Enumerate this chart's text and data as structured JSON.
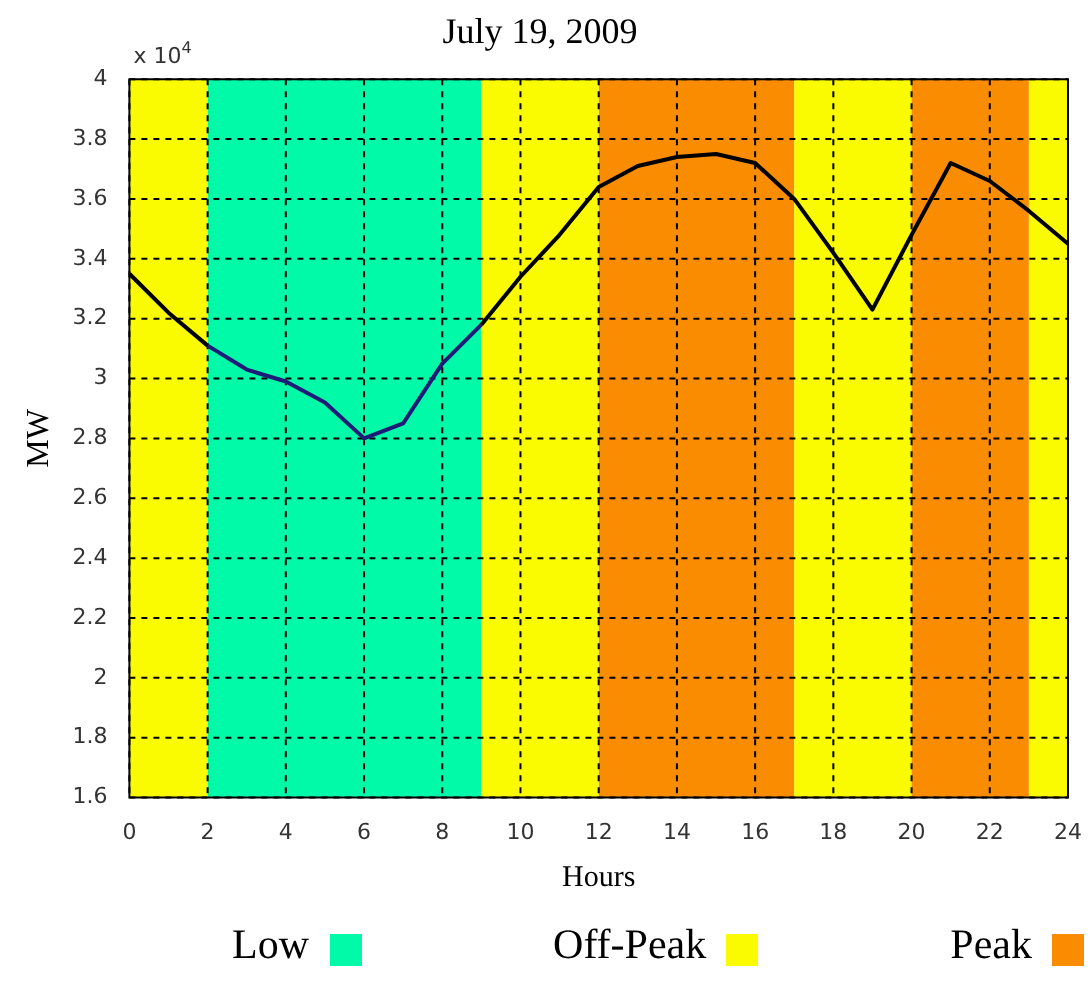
{
  "chart_data": {
    "type": "line",
    "title": "July 19, 2009",
    "xlabel": "Hours",
    "ylabel": "MW",
    "annotations": [
      "x 10$^{4}$"
    ],
    "x": [
      0,
      1,
      2,
      3,
      4,
      5,
      6,
      7,
      8,
      9,
      10,
      11,
      12,
      13,
      14,
      15,
      16,
      17,
      18,
      19,
      20,
      21,
      22,
      23,
      24
    ],
    "series": [
      {
        "color": "#000000",
        "values": [
          3.35,
          3.22,
          3.11,
          null,
          null,
          null,
          null,
          null,
          null,
          3.18,
          3.34,
          3.48,
          3.64,
          3.71,
          3.74,
          3.75,
          3.72,
          3.6,
          3.42,
          3.23,
          3.48,
          3.72,
          3.66,
          3.56,
          3.45
        ]
      },
      {
        "color": "#1c1c78",
        "values": [
          null,
          null,
          3.11,
          3.03,
          2.99,
          2.92,
          2.8,
          2.85,
          3.05,
          3.18,
          null,
          null,
          null,
          null,
          null,
          null,
          null,
          null,
          null,
          null,
          null,
          null,
          null,
          null,
          null
        ]
      }
    ],
    "bands": [
      {
        "axis": "x",
        "from": 2,
        "to": 9,
        "label": "Low",
        "color": "#00faa8"
      },
      {
        "axis": "x",
        "from": 0,
        "to": 2,
        "label": "Off-Peak",
        "color": "#fafa00"
      },
      {
        "axis": "x",
        "from": 12,
        "to": 17,
        "label": "Peak",
        "color": "#f98c00"
      },
      {
        "axis": "x",
        "from": 9,
        "to": 12,
        "color": "#fafa00"
      },
      {
        "axis": "x",
        "from": 17,
        "to": 20,
        "color": "#fafa00"
      },
      {
        "axis": "x",
        "from": 20,
        "to": 23,
        "color": "#f98c00"
      },
      {
        "axis": "x",
        "from": 23,
        "to": 24,
        "color": "#fafa00"
      }
    ],
    "xlim": [
      0,
      24
    ],
    "xticks": [
      0,
      2,
      4,
      6,
      8,
      10,
      12,
      14,
      16,
      18,
      20,
      22,
      24
    ],
    "ylim": [
      1.6,
      4
    ],
    "yticks": [
      1.6,
      1.8,
      2,
      2.2,
      2.4,
      2.6,
      2.8,
      3,
      3.2,
      3.4,
      3.6,
      3.8,
      4
    ],
    "grid": true,
    "legend": "bottom",
    "marker": "none",
    "line_style": "solid"
  }
}
